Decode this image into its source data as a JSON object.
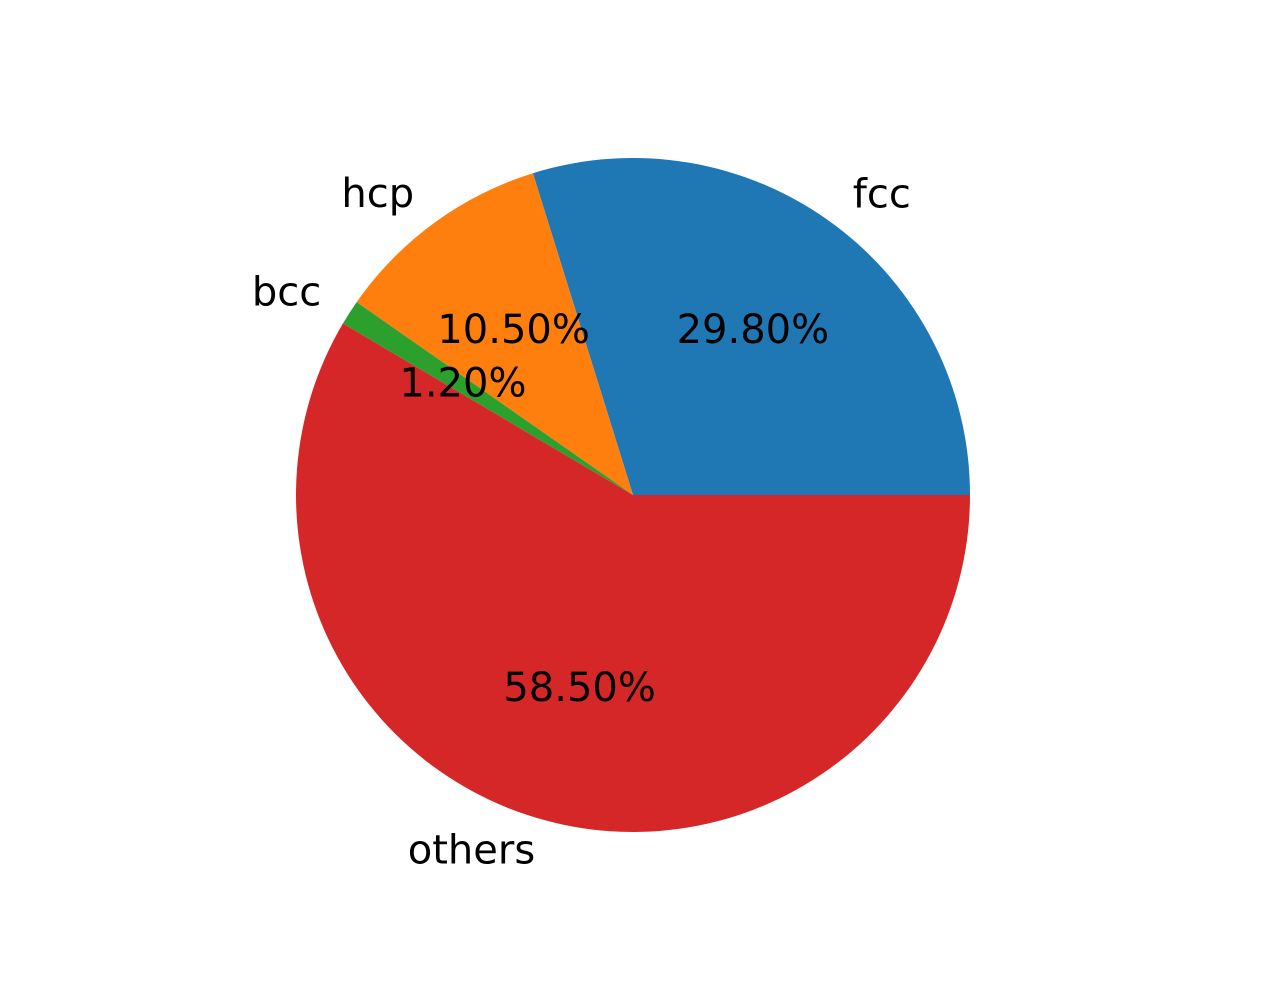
{
  "chart_data": {
    "type": "pie",
    "title": "",
    "start_angle_deg": 0,
    "direction": "counterclockwise",
    "legend": "none",
    "slices": [
      {
        "label": "fcc",
        "value": 29.8,
        "pct_label": "29.80%",
        "color": "#1f77b4"
      },
      {
        "label": "hcp",
        "value": 10.5,
        "pct_label": "10.50%",
        "color": "#ff7f0e"
      },
      {
        "label": "bcc",
        "value": 1.2,
        "pct_label": "1.20%",
        "color": "#2ca02c"
      },
      {
        "label": "others",
        "value": 58.5,
        "pct_label": "58.50%",
        "color": "#d62728"
      }
    ]
  }
}
